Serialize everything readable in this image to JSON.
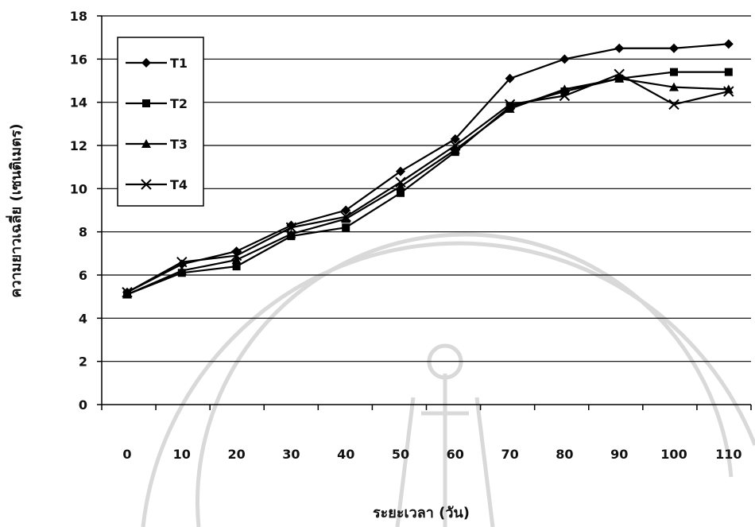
{
  "chart_data": {
    "type": "line",
    "xlabel": "ระยะเวลา (วัน)",
    "ylabel": "ความยาวเฉลี่ย (เซนติเมตร)",
    "x": [
      0,
      10,
      20,
      30,
      40,
      50,
      60,
      70,
      80,
      90,
      100,
      110
    ],
    "x_tick_labels": [
      "0",
      "10",
      "20",
      "30",
      "40",
      "50",
      "60",
      "70",
      "80",
      "90",
      "100",
      "110"
    ],
    "ylim": [
      0,
      18
    ],
    "y_ticks": [
      0,
      2,
      4,
      6,
      8,
      10,
      12,
      14,
      16,
      18
    ],
    "grid": true,
    "legend_position": "top-left",
    "series": [
      {
        "name": "T1",
        "marker": "diamond",
        "values": [
          5.2,
          6.5,
          7.1,
          8.3,
          9.0,
          10.8,
          12.3,
          15.1,
          16.0,
          16.5,
          16.5,
          16.7
        ]
      },
      {
        "name": "T2",
        "marker": "square",
        "values": [
          5.1,
          6.1,
          6.4,
          7.8,
          8.2,
          9.8,
          11.7,
          13.8,
          14.5,
          15.1,
          15.4,
          15.4
        ]
      },
      {
        "name": "T3",
        "marker": "triangle",
        "values": [
          5.1,
          6.2,
          6.7,
          7.9,
          8.6,
          10.1,
          11.8,
          13.7,
          14.6,
          15.1,
          14.7,
          14.6
        ]
      },
      {
        "name": "T4",
        "marker": "x",
        "values": [
          5.2,
          6.6,
          6.9,
          8.2,
          8.7,
          10.3,
          12.0,
          13.9,
          14.3,
          15.3,
          13.9,
          14.5
        ]
      }
    ]
  }
}
